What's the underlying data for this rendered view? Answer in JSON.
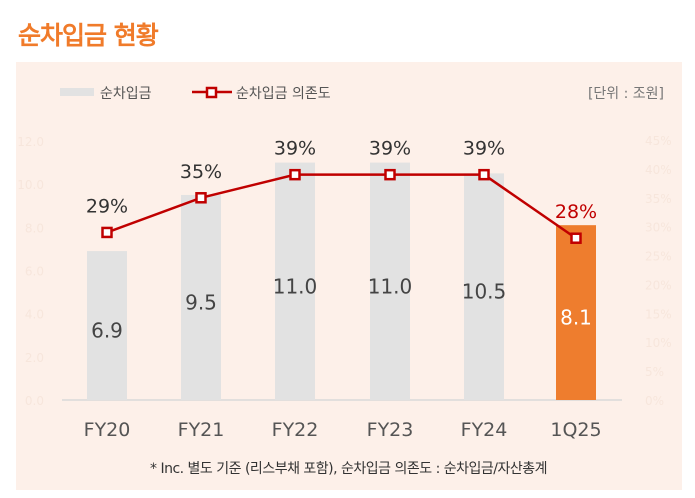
{
  "title": "순차입금 현황",
  "unit": "[단위 : 조원]",
  "footnote": "* Inc. 별도 기준 (리스부채 포함), 순차입금 의존도 : 순차입금/자산총계",
  "colors": {
    "title": "#f07b2a",
    "bar": "#e2e2e2",
    "highlight_bar": "#ee7d2e",
    "line": "#c00000",
    "highlight_label": "#c00000"
  },
  "chart_data": {
    "type": "bar+line",
    "categories": [
      "FY20",
      "FY21",
      "FY22",
      "FY23",
      "FY24",
      "1Q25"
    ],
    "series": [
      {
        "name": "순차입금",
        "type": "bar",
        "axis": "left",
        "values": [
          6.9,
          9.5,
          11.0,
          11.0,
          10.5,
          8.1
        ],
        "labels": [
          "6.9",
          "9.5",
          "11.0",
          "11.0",
          "10.5",
          "8.1"
        ]
      },
      {
        "name": "순차입금 의존도",
        "type": "line",
        "axis": "right",
        "values": [
          29,
          35,
          39,
          39,
          39,
          28
        ],
        "labels": [
          "29%",
          "35%",
          "39%",
          "39%",
          "39%",
          "28%"
        ]
      }
    ],
    "left_axis": {
      "range": [
        0,
        12
      ],
      "ticks": [
        "0.0",
        "2.0",
        "4.0",
        "6.0",
        "8.0",
        "10.0",
        "12.0"
      ]
    },
    "right_axis": {
      "range": [
        0,
        45
      ],
      "ticks": [
        "0%",
        "5%",
        "10%",
        "15%",
        "20%",
        "25%",
        "30%",
        "35%",
        "40%",
        "45%"
      ]
    },
    "highlight_index": 5,
    "legend_placement": "top-left"
  }
}
